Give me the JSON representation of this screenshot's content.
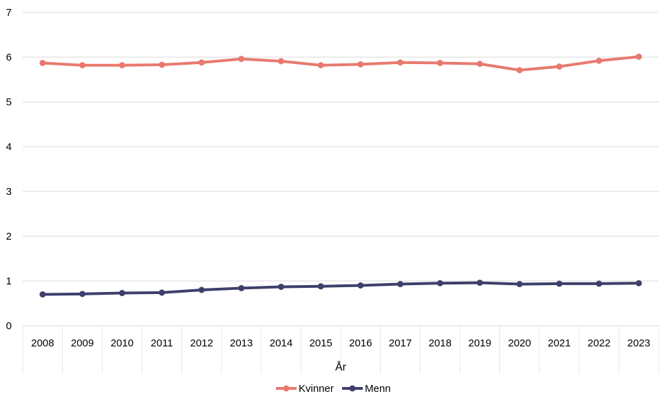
{
  "chart_data": {
    "type": "line",
    "categories": [
      "2008",
      "2009",
      "2010",
      "2011",
      "2012",
      "2013",
      "2014",
      "2015",
      "2016",
      "2017",
      "2018",
      "2019",
      "2020",
      "2021",
      "2022",
      "2023"
    ],
    "series": [
      {
        "name": "Kvinner",
        "color": "#E8796E",
        "values": [
          5.87,
          5.82,
          5.82,
          5.83,
          5.88,
          5.96,
          5.91,
          5.82,
          5.84,
          5.88,
          5.87,
          5.85,
          5.71,
          5.79,
          5.92,
          6.01
        ]
      },
      {
        "name": "Menn",
        "color": "#3F3F6B",
        "values": [
          0.7,
          0.71,
          0.73,
          0.74,
          0.8,
          0.84,
          0.87,
          0.88,
          0.9,
          0.93,
          0.95,
          0.96,
          0.93,
          0.94,
          0.94,
          0.95
        ]
      }
    ],
    "xlabel": "År",
    "ylabel": "",
    "ylim": [
      0,
      7
    ],
    "yticks": [
      "0",
      "1",
      "2",
      "3",
      "4",
      "5",
      "6",
      "7"
    ],
    "grid": true,
    "legend_position": "bottom"
  }
}
